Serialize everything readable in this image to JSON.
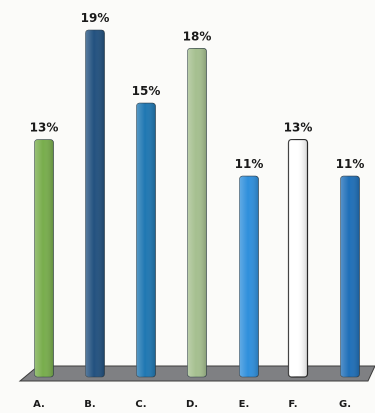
{
  "chart_data": {
    "type": "bar",
    "categories": [
      "A.",
      "B.",
      "C.",
      "D.",
      "E.",
      "F.",
      "G."
    ],
    "values": [
      13,
      19,
      15,
      18,
      11,
      13,
      11
    ],
    "value_labels": [
      "13%",
      "19%",
      "15%",
      "18%",
      "11%",
      "13%",
      "11%"
    ],
    "ylim": [
      0,
      20
    ],
    "grid": false,
    "legend": "none",
    "colors": [
      "#78ad4c",
      "#22517f",
      "#1f77b2",
      "#a5bf8f",
      "#2f8fdc",
      "#ffffff",
      "#1f6fb8"
    ],
    "floor_color": "#7f8083"
  }
}
